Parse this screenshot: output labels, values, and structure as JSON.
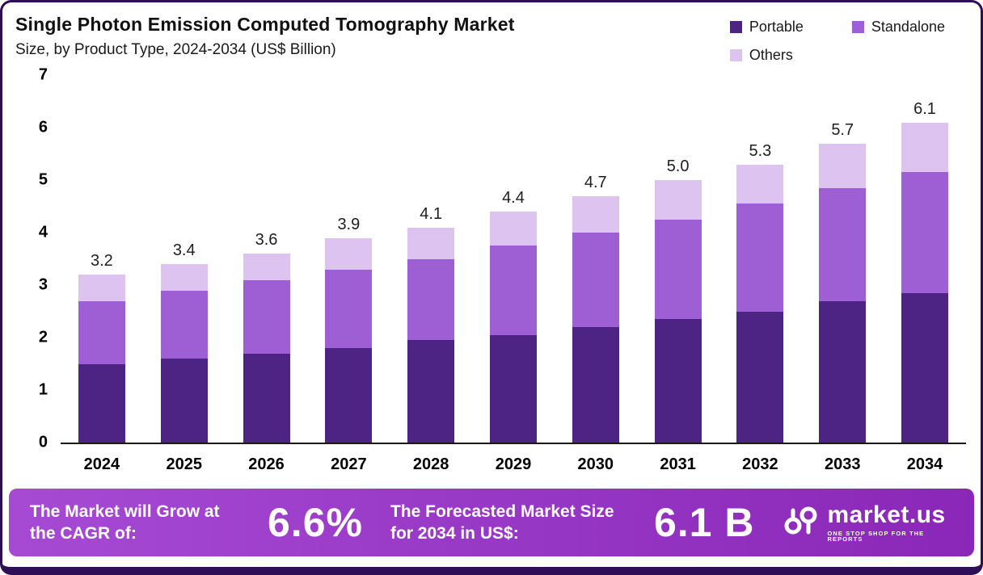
{
  "header": {
    "title": "Single Photon Emission Computed Tomography Market",
    "subtitle": "Size, by Product Type, 2024-2034 (US$ Billion)"
  },
  "legend": [
    {
      "label": "Portable",
      "color": "#4D2383"
    },
    {
      "label": "Standalone",
      "color": "#9E5FD4"
    },
    {
      "label": "Others",
      "color": "#DCC3F0"
    }
  ],
  "colors": {
    "portable": "#4D2383",
    "standalone": "#9E5FD4",
    "others": "#DCC3F0",
    "banner_from": "#A64AD4",
    "banner_to": "#8A27B8",
    "frame_border": "#2D0E57"
  },
  "chart_data": {
    "type": "bar",
    "stacked": true,
    "title": "Single Photon Emission Computed Tomography Market",
    "subtitle": "Size, by Product Type, 2024-2034 (US$ Billion)",
    "xlabel": "",
    "ylabel": "US$ Billion",
    "ylim": [
      0,
      7
    ],
    "yticks": [
      0,
      1,
      2,
      3,
      4,
      5,
      6,
      7
    ],
    "grid": false,
    "legend_position": "top-right",
    "categories": [
      "2024",
      "2025",
      "2026",
      "2027",
      "2028",
      "2029",
      "2030",
      "2031",
      "2032",
      "2033",
      "2034"
    ],
    "series": [
      {
        "name": "Portable",
        "color": "#4D2383",
        "values": [
          1.5,
          1.6,
          1.7,
          1.8,
          1.95,
          2.05,
          2.2,
          2.35,
          2.5,
          2.7,
          2.85
        ]
      },
      {
        "name": "Standalone",
        "color": "#9E5FD4",
        "values": [
          1.2,
          1.3,
          1.4,
          1.5,
          1.55,
          1.7,
          1.8,
          1.9,
          2.05,
          2.15,
          2.3
        ]
      },
      {
        "name": "Others",
        "color": "#DCC3F0",
        "values": [
          0.5,
          0.5,
          0.5,
          0.6,
          0.6,
          0.65,
          0.7,
          0.75,
          0.75,
          0.85,
          0.95
        ]
      }
    ],
    "totals": [
      3.2,
      3.4,
      3.6,
      3.9,
      4.1,
      4.4,
      4.7,
      5.0,
      5.3,
      5.7,
      6.1
    ]
  },
  "footer": {
    "cagr_label": "The Market will Grow at the CAGR of:",
    "cagr_value": "6.6%",
    "forecast_label": "The Forecasted Market Size for 2034 in US$:",
    "forecast_value": "6.1 B",
    "brand": "market.us",
    "brand_tagline": "ONE STOP SHOP FOR THE REPORTS"
  }
}
